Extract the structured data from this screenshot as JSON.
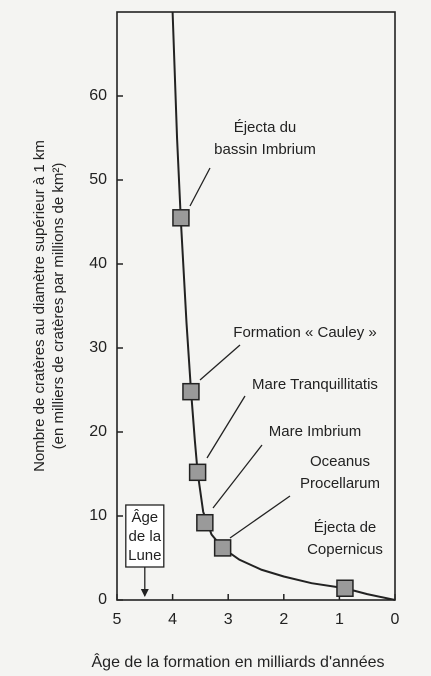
{
  "chart_data": {
    "type": "line",
    "x_label": "Âge de la formation en milliards d'années",
    "y_label": [
      "Nombre de cratères au diamètre supérieur à 1 km",
      "(en milliers de cratères par millions de km²)"
    ],
    "xlim": [
      5,
      0
    ],
    "ylim": [
      0,
      70
    ],
    "xticks": [
      5,
      4,
      3,
      2,
      1,
      0
    ],
    "yticks": [
      0,
      10,
      20,
      30,
      40,
      50,
      60
    ],
    "curve": {
      "x": [
        4.0,
        3.92,
        3.85,
        3.75,
        3.67,
        3.6,
        3.55,
        3.45,
        3.3,
        3.1,
        2.8,
        2.4,
        2.0,
        1.5,
        0.9,
        0.5,
        0.0
      ],
      "y": [
        70,
        55,
        45,
        33,
        25,
        19,
        15.2,
        10.5,
        7.8,
        6.2,
        4.8,
        3.6,
        2.8,
        2.0,
        1.4,
        0.7,
        0
      ]
    },
    "points": {
      "x": [
        3.85,
        3.67,
        3.55,
        3.42,
        3.1,
        0.9
      ],
      "y": [
        45.5,
        24.8,
        15.2,
        9.2,
        6.2,
        1.4
      ],
      "labels": [
        [
          "Éjecta du",
          "bassin Imbrium"
        ],
        [
          "Formation « Cauley »"
        ],
        [
          "Mare Tranquillitatis"
        ],
        [
          "Mare Imbrium"
        ],
        [
          "Oceanus",
          "Procellarum"
        ],
        [
          "Éjecta de",
          "Copernicus"
        ]
      ]
    },
    "moon_age": {
      "x": 4.5,
      "label": [
        "Âge",
        "de la",
        "Lune"
      ]
    }
  }
}
